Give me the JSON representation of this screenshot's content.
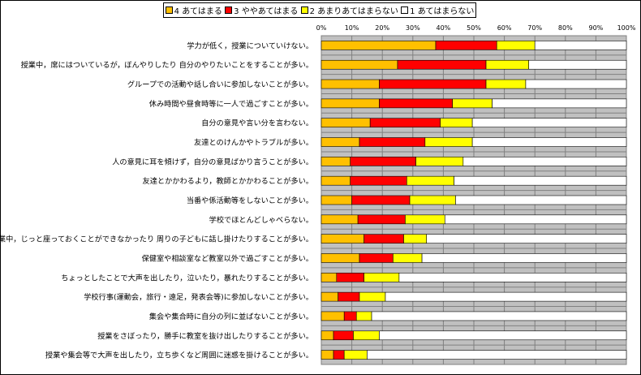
{
  "legend": [
    {
      "label": "4 あてはまる",
      "color": "#FFC000"
    },
    {
      "label": "3 ややあてはまる",
      "color": "#FF0000"
    },
    {
      "label": "2 あまりあてはまらない",
      "color": "#FFFF00"
    },
    {
      "label": "1 あてはまらない",
      "color": "#FFFFFF"
    }
  ],
  "chart_data": {
    "type": "bar",
    "orientation": "horizontal",
    "stacked": true,
    "xlim": [
      0,
      100
    ],
    "x_ticks": [
      "0%",
      "10%",
      "20%",
      "30%",
      "40%",
      "50%",
      "60%",
      "70%",
      "80%",
      "90%",
      "100%"
    ],
    "grid": true,
    "legend_position": "top",
    "categories": [
      "学力が低く，授業についていけない。",
      "授業中，席にはついているが，ぼんやりしたり 自分のやりたいことをすることが多い。",
      "グループでの活動や話し合いに参加しないことが多い。",
      "休み時間や昼食時等に一人で過ごすことが多い。",
      "自分の意見や言い分を言わない。",
      "友達とのけんかやトラブルが多い。",
      "人の意見に耳を傾けず，自分の意見ばかり言うことが多い。",
      "友達とかかわるより，教師とかかわることが多い。",
      "当番や係活動等をしないことが多い。",
      "学校でほとんどしゃべらない。",
      "授業中，じっと座っておくことができなかったり 周りの子どもに話し掛けたりすることが多い。",
      "保健室や相談室など教室以外で過ごすことが多い。",
      "ちょっとしたことで大声を出したり，泣いたり，暴れたりすることが多い。",
      "学校行事(運動会，旅行・遠足，発表会等)に参加しないことが多い。",
      "集会や集合時に自分の列に並ばないことが多い。",
      "授業をさぼったり，勝手に教室を抜け出したりすることが多い。",
      "授業や集会等で大声を出したり，立ち歩くなど周囲に迷惑を掛けることが多い。"
    ],
    "series": [
      {
        "name": "4 あてはまる",
        "color": "#FFC000",
        "values": [
          37.5,
          25,
          19,
          19,
          16,
          12.5,
          9.5,
          9.5,
          10,
          12,
          14,
          12.5,
          5,
          5.5,
          7.5,
          4,
          4
        ]
      },
      {
        "name": "3 ややあてはまる",
        "color": "#FF0000",
        "values": [
          20,
          29,
          35,
          24,
          23,
          21.5,
          21.5,
          18.5,
          19,
          15.5,
          13,
          11,
          9,
          7,
          4,
          6.5,
          3.5
        ]
      },
      {
        "name": "2 あまりあてはまらない",
        "color": "#FFFF00",
        "values": [
          12.5,
          14,
          13,
          13,
          10.5,
          15.5,
          15.5,
          15.5,
          15,
          13,
          7.5,
          9.5,
          11.5,
          8.5,
          5,
          8.5,
          7.5
        ]
      },
      {
        "name": "1 あてはまらない",
        "color": "#FFFFFF",
        "values": [
          30,
          32,
          33,
          44,
          50.5,
          50.5,
          53.5,
          56.5,
          56,
          59.5,
          65.5,
          67,
          74.5,
          79,
          83.5,
          81,
          85
        ]
      }
    ]
  }
}
